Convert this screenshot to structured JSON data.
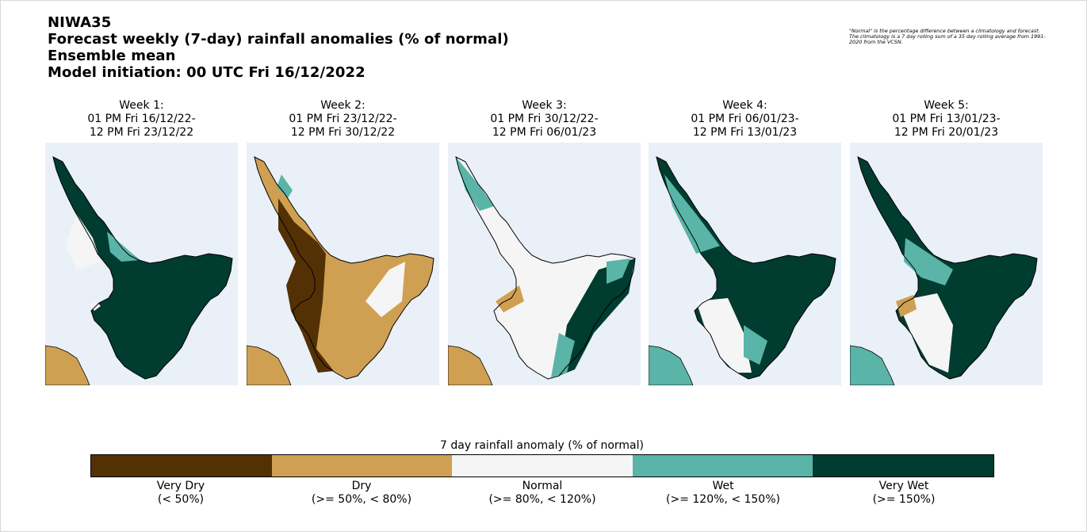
{
  "title": {
    "lines": [
      "NIWA35",
      "Forecast weekly (7-day) rainfall anomalies (% of normal)",
      "Ensemble mean",
      "Model initiation: 00 UTC Fri 16/12/2022"
    ]
  },
  "footnote": "\"Normal\" is the percentage difference between a climatology and forecast. The climatology is a 7 day rolling sum of a 35 day rolling average from 1991-2020 from the VCSN.",
  "palette": {
    "very_dry": "#543005",
    "dry": "#cfa052",
    "normal": "#f5f5f5",
    "wet": "#5ab4a8",
    "very_wet": "#003c30",
    "ocean": "#eaf0f8"
  },
  "panels": [
    {
      "title": "Week 1:",
      "start": "01 PM Fri 16/12/22-",
      "end": "12 PM Fri 23/12/22",
      "dominant": "very_wet"
    },
    {
      "title": "Week 2:",
      "start": "01 PM Fri 23/12/22-",
      "end": "12 PM Fri 30/12/22",
      "dominant": "dry"
    },
    {
      "title": "Week 3:",
      "start": "01 PM Fri 30/12/22-",
      "end": "12 PM Fri 06/01/23",
      "dominant": "normal"
    },
    {
      "title": "Week 4:",
      "start": "01 PM Fri 06/01/23-",
      "end": "12 PM Fri 13/01/23",
      "dominant": "very_wet"
    },
    {
      "title": "Week 5:",
      "start": "01 PM Fri 13/01/23-",
      "end": "12 PM Fri 20/01/23",
      "dominant": "very_wet"
    }
  ],
  "colorbar": {
    "label": "7 day rainfall anomaly (% of normal)",
    "categories": [
      {
        "key": "very_dry",
        "name": "Very Dry",
        "range": "(< 50%)",
        "color": "#543005"
      },
      {
        "key": "dry",
        "name": "Dry",
        "range": "(>= 50%, < 80%)",
        "color": "#cfa052"
      },
      {
        "key": "normal",
        "name": "Normal",
        "range": "(>= 80%, < 120%)",
        "color": "#f5f5f5"
      },
      {
        "key": "wet",
        "name": "Wet",
        "range": "(>= 120%, < 150%)",
        "color": "#5ab4a8"
      },
      {
        "key": "very_wet",
        "name": "Very Wet",
        "range": "(>= 150%)",
        "color": "#003c30"
      }
    ]
  }
}
